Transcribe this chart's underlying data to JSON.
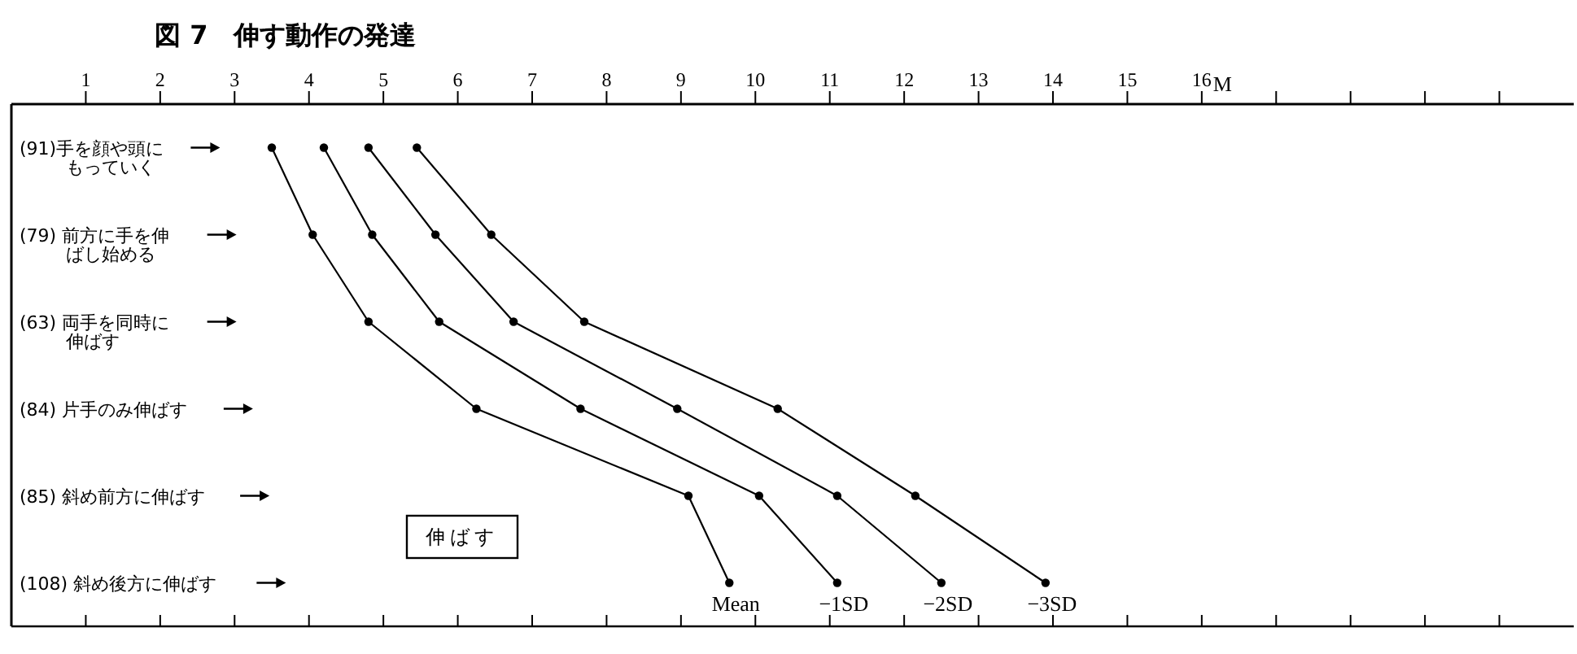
{
  "chart_data": {
    "type": "line",
    "orientation": "horizontal",
    "title": "図 7　伸す動作の発達",
    "xlabel": "M",
    "categories": [
      "(91)手を顔や頭にもっていく",
      "(79) 前方に手を伸ばし始める",
      "(63) 両手を同時に伸ばす",
      "(84) 片手のみ伸ばす",
      "(85) 斜め前方に伸ばす",
      "(108) 斜め後方に伸ばす"
    ],
    "series": [
      {
        "name": "Mean",
        "color": "#000000",
        "values": [
          3.5,
          4.05,
          4.8,
          6.25,
          9.1,
          9.65
        ]
      },
      {
        "name": "−1SD",
        "color": "#000000",
        "values": [
          4.2,
          4.85,
          5.75,
          7.65,
          10.05,
          11.1
        ]
      },
      {
        "name": "−2SD",
        "color": "#000000",
        "values": [
          4.8,
          5.7,
          6.75,
          8.95,
          11.1,
          12.5
        ]
      },
      {
        "name": "−3SD",
        "color": "#000000",
        "values": [
          5.45,
          6.45,
          7.7,
          10.3,
          12.15,
          13.9
        ]
      }
    ],
    "xlim": [
      0,
      21
    ],
    "xticks": [
      1,
      2,
      3,
      4,
      5,
      6,
      7,
      8,
      9,
      10,
      11,
      12,
      13,
      14,
      15,
      16,
      {
        "value": 17,
        "label": null
      },
      {
        "value": 18,
        "label": null
      },
      {
        "value": 19,
        "label": null
      },
      {
        "value": 20,
        "label": null
      }
    ],
    "marker": "circle",
    "line_style": "solid",
    "legend": "bottom",
    "grid": false,
    "annotations": [
      "伸ばす"
    ]
  }
}
